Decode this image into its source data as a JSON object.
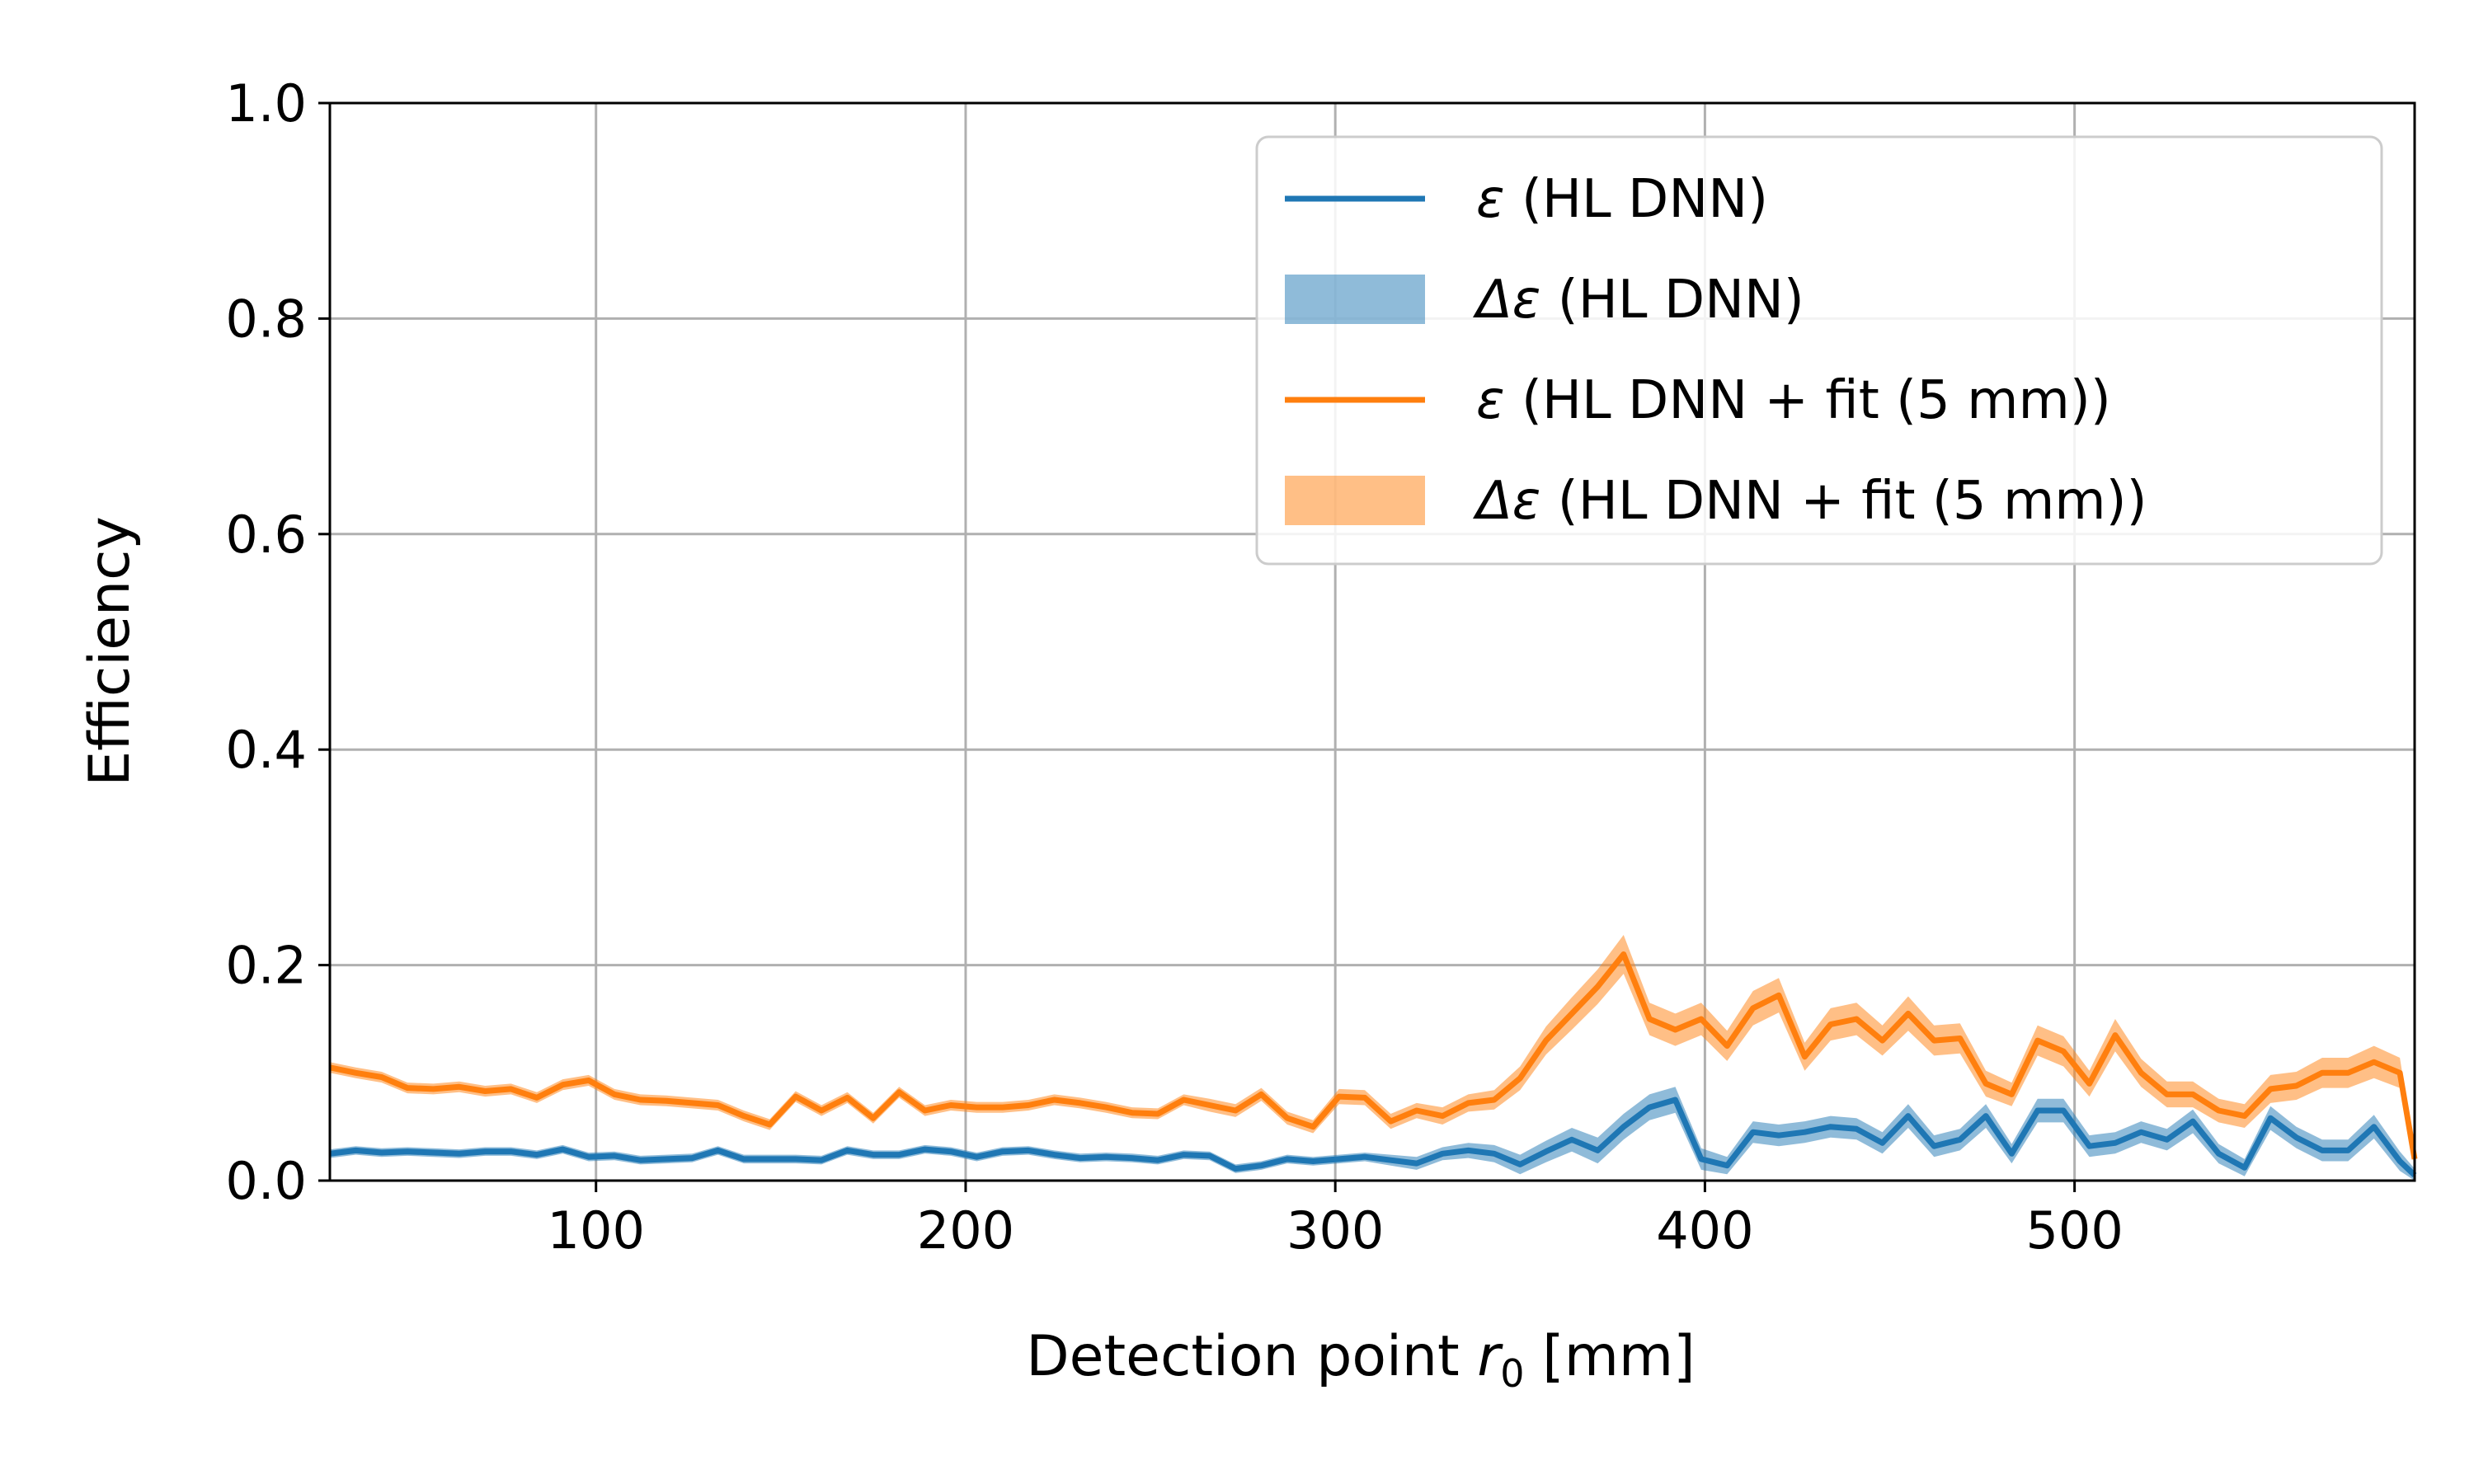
{
  "chart_data": {
    "type": "line",
    "title": "",
    "xlabel_prefix": "Detection point ",
    "xlabel_var": "r",
    "xlabel_sub": "0",
    "xlabel_suffix": " [mm]",
    "ylabel": "Efficiency",
    "xlim": [
      28,
      592
    ],
    "ylim": [
      0.0,
      1.0
    ],
    "x_ticks": [
      100,
      200,
      300,
      400,
      500
    ],
    "x_tick_labels": [
      "100",
      "200",
      "300",
      "400",
      "500"
    ],
    "y_ticks": [
      0.0,
      0.2,
      0.4,
      0.6,
      0.8,
      1.0
    ],
    "y_tick_labels": [
      "0.0",
      "0.2",
      "0.4",
      "0.6",
      "0.8",
      "1.0"
    ],
    "grid": true,
    "legend_position": "top-right",
    "legend": [
      {
        "symbol": "ε",
        "label": " (HL DNN)",
        "kind": "line",
        "color": "#1f77b4"
      },
      {
        "symbol": "Δε",
        "label": " (HL DNN)",
        "kind": "band",
        "color": "#1f77b4"
      },
      {
        "symbol": "ε",
        "label": " (HL DNN + fit (5 mm))",
        "kind": "line",
        "color": "#ff7f0e"
      },
      {
        "symbol": "Δε",
        "label": " (HL DNN + fit (5 mm))",
        "kind": "band",
        "color": "#ff7f0e"
      }
    ],
    "x": [
      28,
      35,
      42,
      49,
      56,
      63,
      70,
      77,
      84,
      91,
      98,
      105,
      112,
      119,
      126,
      133,
      140,
      147,
      154,
      161,
      168,
      175,
      182,
      189,
      196,
      203,
      210,
      217,
      224,
      231,
      238,
      245,
      252,
      259,
      266,
      273,
      280,
      287,
      294,
      301,
      308,
      315,
      322,
      329,
      336,
      343,
      350,
      357,
      364,
      371,
      378,
      385,
      392,
      399,
      406,
      413,
      420,
      427,
      434,
      441,
      448,
      455,
      462,
      469,
      476,
      483,
      490,
      497,
      504,
      511,
      518,
      525,
      532,
      539,
      546,
      553,
      560,
      567,
      574,
      581,
      588,
      592
    ],
    "series": [
      {
        "name": "ε (HL DNN)",
        "color": "#1f77b4",
        "values": [
          0.025,
          0.028,
          0.026,
          0.027,
          0.026,
          0.025,
          0.027,
          0.027,
          0.024,
          0.029,
          0.022,
          0.023,
          0.019,
          0.02,
          0.021,
          0.028,
          0.02,
          0.02,
          0.02,
          0.019,
          0.028,
          0.024,
          0.024,
          0.029,
          0.027,
          0.022,
          0.027,
          0.028,
          0.024,
          0.021,
          0.022,
          0.021,
          0.019,
          0.024,
          0.023,
          0.011,
          0.014,
          0.02,
          0.018,
          0.02,
          0.022,
          0.019,
          0.016,
          0.025,
          0.028,
          0.025,
          0.015,
          0.027,
          0.038,
          0.028,
          0.05,
          0.068,
          0.075,
          0.02,
          0.014,
          0.045,
          0.042,
          0.045,
          0.05,
          0.048,
          0.035,
          0.06,
          0.032,
          0.038,
          0.06,
          0.025,
          0.065,
          0.065,
          0.032,
          0.035,
          0.045,
          0.038,
          0.055,
          0.025,
          0.012,
          0.058,
          0.04,
          0.028,
          0.028,
          0.05,
          0.018,
          0.005
        ]
      },
      {
        "name": "ε (HL DNN + fit (5 mm))",
        "color": "#ff7f0e",
        "values": [
          0.105,
          0.1,
          0.096,
          0.086,
          0.085,
          0.087,
          0.083,
          0.085,
          0.077,
          0.089,
          0.093,
          0.08,
          0.075,
          0.074,
          0.072,
          0.07,
          0.06,
          0.052,
          0.078,
          0.065,
          0.077,
          0.058,
          0.082,
          0.065,
          0.07,
          0.068,
          0.068,
          0.07,
          0.075,
          0.072,
          0.068,
          0.063,
          0.062,
          0.075,
          0.07,
          0.065,
          0.08,
          0.058,
          0.05,
          0.078,
          0.077,
          0.055,
          0.065,
          0.06,
          0.072,
          0.075,
          0.095,
          0.13,
          0.155,
          0.18,
          0.21,
          0.15,
          0.14,
          0.15,
          0.125,
          0.16,
          0.172,
          0.115,
          0.145,
          0.15,
          0.13,
          0.155,
          0.13,
          0.132,
          0.09,
          0.08,
          0.13,
          0.12,
          0.09,
          0.135,
          0.1,
          0.08,
          0.08,
          0.065,
          0.06,
          0.085,
          0.088,
          0.1,
          0.1,
          0.11,
          0.1,
          0.02
        ]
      }
    ],
    "bands": [
      {
        "name": "Δε (HL DNN)",
        "color": "#1f77b4",
        "half_width": [
          0.004,
          0.004,
          0.004,
          0.004,
          0.004,
          0.004,
          0.004,
          0.004,
          0.004,
          0.004,
          0.004,
          0.004,
          0.004,
          0.004,
          0.004,
          0.004,
          0.004,
          0.004,
          0.004,
          0.004,
          0.004,
          0.004,
          0.004,
          0.004,
          0.004,
          0.004,
          0.004,
          0.004,
          0.004,
          0.004,
          0.004,
          0.004,
          0.004,
          0.004,
          0.004,
          0.004,
          0.004,
          0.004,
          0.004,
          0.004,
          0.004,
          0.005,
          0.006,
          0.006,
          0.007,
          0.008,
          0.009,
          0.01,
          0.011,
          0.012,
          0.012,
          0.012,
          0.012,
          0.01,
          0.008,
          0.01,
          0.01,
          0.01,
          0.01,
          0.01,
          0.01,
          0.011,
          0.01,
          0.01,
          0.011,
          0.009,
          0.011,
          0.011,
          0.01,
          0.01,
          0.01,
          0.01,
          0.011,
          0.009,
          0.008,
          0.011,
          0.01,
          0.01,
          0.01,
          0.011,
          0.009,
          0.006
        ]
      },
      {
        "name": "Δε (HL DNN + fit (5 mm))",
        "color": "#ff7f0e",
        "half_width": [
          0.005,
          0.005,
          0.005,
          0.005,
          0.005,
          0.005,
          0.005,
          0.005,
          0.005,
          0.005,
          0.005,
          0.005,
          0.005,
          0.005,
          0.005,
          0.005,
          0.005,
          0.005,
          0.005,
          0.005,
          0.005,
          0.005,
          0.005,
          0.005,
          0.005,
          0.005,
          0.005,
          0.005,
          0.005,
          0.005,
          0.005,
          0.005,
          0.005,
          0.005,
          0.006,
          0.006,
          0.006,
          0.006,
          0.006,
          0.007,
          0.007,
          0.007,
          0.007,
          0.008,
          0.008,
          0.009,
          0.011,
          0.013,
          0.015,
          0.016,
          0.018,
          0.015,
          0.015,
          0.015,
          0.014,
          0.016,
          0.016,
          0.013,
          0.015,
          0.015,
          0.014,
          0.016,
          0.014,
          0.014,
          0.012,
          0.011,
          0.014,
          0.014,
          0.012,
          0.015,
          0.013,
          0.012,
          0.012,
          0.011,
          0.011,
          0.013,
          0.013,
          0.014,
          0.014,
          0.015,
          0.014,
          0.008
        ]
      }
    ]
  }
}
